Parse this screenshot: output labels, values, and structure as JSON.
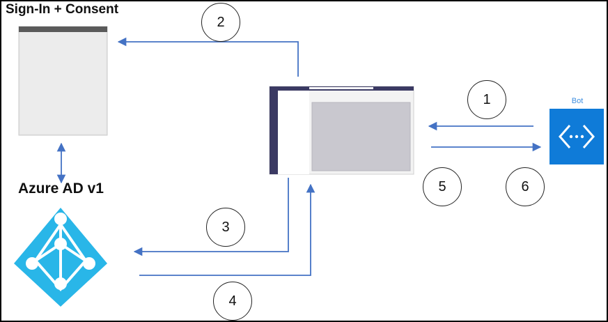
{
  "labels": {
    "signin_consent": "Sign-In + Consent",
    "azure_ad": "Azure AD v1",
    "bot": "Bot"
  },
  "steps": [
    "1",
    "2",
    "3",
    "4",
    "5",
    "6"
  ],
  "colors": {
    "arrow": "#4472c4",
    "bot_tile": "#0f7bd8",
    "azure": "#29b6e8",
    "teams_rail": "#3b3a63",
    "browser_bar": "#5a5a5a",
    "browser_body": "#ececec",
    "content_pane": "#c9c8cf"
  },
  "icons": {
    "bot": "bot-service-icon",
    "azure_ad": "azure-ad-pyramid-icon",
    "browser": "browser-window-icon",
    "teams_client": "teams-client-window-icon"
  }
}
